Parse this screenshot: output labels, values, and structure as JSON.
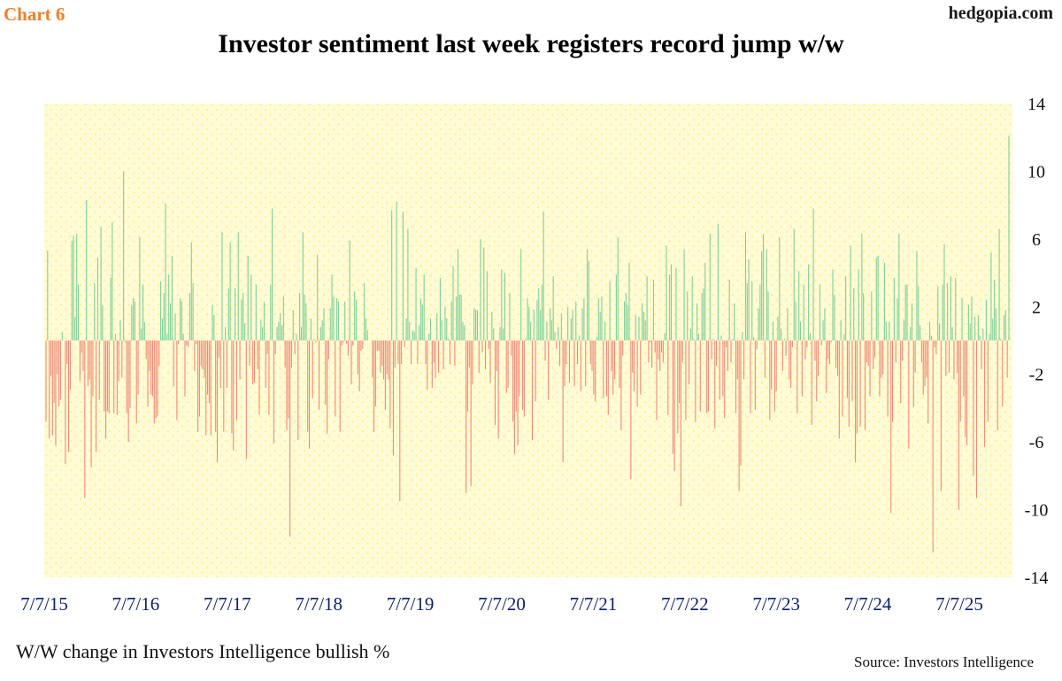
{
  "header": {
    "chart_number": "Chart 6",
    "site": "hedgopia.com",
    "title": "Investor sentiment last week registers record jump w/w"
  },
  "footer": {
    "caption": "W/W change in Investors Intelligence bullish %",
    "source": "Source: Investors Intelligence"
  },
  "colors": {
    "positive": "#7fcf9a",
    "negative": "#ef8a7a",
    "plot_background": "#fffbd6",
    "dots": "#fff07a",
    "axis_text": "#0b1f6b"
  },
  "chart_data": {
    "type": "bar",
    "title": "Investor sentiment last week registers record jump w/w",
    "xlabel": "",
    "ylabel": "",
    "ylim": [
      -14,
      14
    ],
    "y_ticks": [
      14,
      10,
      6,
      2,
      -2,
      -6,
      -10,
      -14
    ],
    "y_axis_side": "right",
    "x_tick_labels": [
      "7/7/15",
      "7/7/16",
      "7/7/17",
      "7/7/18",
      "7/7/19",
      "7/7/20",
      "7/7/21",
      "7/7/22",
      "7/7/23",
      "7/7/24",
      "7/7/25"
    ],
    "grid": false,
    "legend": "none",
    "series": [
      {
        "values": [
          -4.8,
          5.3,
          -5.8,
          -2.1,
          -5.6,
          -3.7,
          -6.2,
          -2.0,
          -3.9,
          -3.5,
          0.5,
          0.0,
          -7.3,
          -1.4,
          -6.6,
          -2.9,
          5.9,
          6.2,
          1.4,
          6.3,
          3.3,
          -2.4,
          -0.7,
          -1.8,
          -9.3,
          8.3,
          -2.7,
          -2.3,
          -7.5,
          -3.3,
          3.4,
          -6.6,
          4.9,
          -3.5,
          6.7,
          2.1,
          -4.2,
          -5.8,
          -4.2,
          -4.3,
          3.7,
          7.0,
          -4.3,
          0.4,
          -4.4,
          -2.4,
          1.2,
          -2.2,
          10.0,
          -0.1,
          -4.3,
          -6.0,
          -4.0,
          2.1,
          2.5,
          2.3,
          -4.9,
          -3.2,
          6.1,
          0.7,
          3.3,
          1.1,
          -1.1,
          -3.9,
          -1.8,
          -3.2,
          -3.3,
          -4.9,
          -4.6,
          -4.5,
          -1.5,
          3.5,
          1.3,
          2.8,
          8.1,
          0.4,
          3.9,
          2.2,
          5.0,
          -2.7,
          1.6,
          -4.7,
          -0.2,
          2.5,
          2.3,
          0.4,
          -3.3,
          -0.3,
          -0.4,
          2.8,
          5.8,
          3.4,
          -1.8,
          -0.2,
          -5.4,
          -4.5,
          -1.5,
          -1.7,
          -2.2,
          -5.6,
          -3.2,
          -3.7,
          -5.6,
          2.1,
          1.5,
          -5.4,
          -7.2,
          -1.0,
          -2.8,
          6.4,
          -5.4,
          0.8,
          -2.8,
          3.1,
          5.8,
          -5.5,
          -6.5,
          3.1,
          -4.7,
          6.4,
          -2.3,
          2.4,
          2.8,
          1.0,
          -7.0,
          5.0,
          -1.5,
          3.9,
          -2.6,
          -2.5,
          3.3,
          -1.7,
          -4.4,
          1.2,
          0.8,
          2.3,
          -2.8,
          -0.8,
          -4.4,
          3.3,
          7.8,
          -6.1,
          -0.8,
          0.8,
          1.1,
          1.6,
          0.9,
          2.6,
          -1.6,
          -5.3,
          -4.6,
          -11.6,
          -1.6,
          1.8,
          -0.8,
          0.4,
          -5.9,
          2.8,
          0.8,
          6.4,
          2.7,
          2.2,
          -5.4,
          -6.4,
          1.3,
          -3.4,
          0.1,
          -0.1,
          5.1,
          -4.1,
          0.8,
          1.2,
          1.9,
          -3.8,
          -5.5,
          -1.1,
          1.9,
          3.9,
          2.6,
          -4.5,
          2.5,
          2.3,
          -5.4,
          -0.3,
          -0.1,
          2.3,
          -0.2,
          -0.9,
          5.9,
          -2.6,
          -0.3,
          2.9,
          2.4,
          -2.0,
          -3.0,
          -0.6,
          -0.5,
          3.4,
          1.3,
          0.6,
          0.0,
          0.0,
          -2.2,
          -5.4,
          -3.9,
          -0.6,
          -0.6,
          -1.9,
          -1.5,
          -2.3,
          -4.1,
          -2.0,
          -2.3,
          -5.2,
          7.7,
          -6.8,
          -1.6,
          8.2,
          -1.4,
          -9.5,
          -1.4,
          7.6,
          -0.4,
          1.3,
          6.6,
          1.1,
          -1.4,
          0.6,
          0.5,
          4.3,
          -1.4,
          0.9,
          2.5,
          2.1,
          3.9,
          -1.4,
          -2.9,
          0.4,
          1.3,
          -2.8,
          -1.3,
          -2.2,
          1.6,
          -1.9,
          3.7,
          1.2,
          -1.7,
          2.0,
          1.3,
          0.1,
          -1.4,
          2.3,
          4.4,
          -1.5,
          2.6,
          5.4,
          2.7,
          2.7,
          1.1,
          0.9,
          -9.0,
          -4.2,
          -1.6,
          -8.6,
          -2.6,
          1.9,
          1.8,
          1.8,
          -1.9,
          6.0,
          -0.7,
          5.5,
          -1.7,
          4.1,
          -0.5,
          -2.5,
          1.7,
          0.7,
          -5.0,
          -1.8,
          -5.8,
          0.8,
          4.2,
          0.7,
          4.0,
          -3.1,
          -2.8,
          2.8,
          -0.9,
          -4.8,
          -6.7,
          -4.2,
          -6.2,
          -3.3,
          5.4,
          -4.1,
          -4.5,
          0.1,
          2.5,
          2.0,
          1.1,
          -5.9,
          1.8,
          -3.6,
          2.4,
          3.1,
          1.8,
          3.3,
          7.6,
          -1.2,
          1.1,
          -3.5,
          1.9,
          1.2,
          3.8,
          0.5,
          -0.5,
          0.8,
          -1.5,
          1.6,
          -7.2,
          -2.7,
          -1.4,
          2.0,
          -2.5,
          1.3,
          1.8,
          -2.7,
          2.3,
          -1.4,
          0.3,
          -3.0,
          1.9,
          2.5,
          -2.7,
          5.4,
          4.7,
          -1.4,
          -1.8,
          -3.2,
          -3.6,
          0.2,
          2.5,
          1.7,
          2.6,
          -3.4,
          1.1,
          -3.3,
          -4.4,
          3.5,
          -1.8,
          -3.2,
          -2.3,
          3.9,
          6.1,
          -2.8,
          -5.3,
          -0.9,
          2.3,
          2.8,
          2.1,
          4.6,
          -8.2,
          -1.9,
          -3.0,
          1.5,
          -3.9,
          1.4,
          -3.2,
          2.2,
          1.7,
          1.2,
          3.8,
          -1.3,
          -0.1,
          -1.6,
          3.6,
          -0.7,
          -4.7,
          -1.1,
          -1.8,
          -0.7,
          -1.3,
          0.4,
          5.6,
          -4.4,
          3.9,
          4.5,
          -6.7,
          -7.7,
          4.3,
          -5.5,
          -3.7,
          -9.8,
          -1.3,
          5.4,
          -4.7,
          2.9,
          -2.6,
          0.7,
          3.8,
          0.1,
          -4.8,
          2.2,
          0.4,
          -4.2,
          2.8,
          3.1,
          4.6,
          -4.3,
          -4.2,
          6.3,
          -1.1,
          0.1,
          -5.2,
          -1.5,
          6.9,
          -3.5,
          0.3,
          -3.3,
          -4.6,
          -0.4,
          -1.8,
          3.6,
          -1.3,
          0.1,
          2.2,
          -4.3,
          -2.3,
          -8.9,
          -7.4,
          0.5,
          -2.3,
          6.4,
          3.4,
          4.8,
          -4.3,
          3.5,
          0.2,
          -4.1,
          -0.5,
          1.9,
          3.3,
          5.3,
          6.3,
          -2.2,
          5.4,
          2.9,
          -4.7,
          -2.9,
          1.1,
          -4.2,
          -3.0,
          1.4,
          6.1,
          0.7,
          -1.8,
          0.1,
          -0.9,
          1.9,
          -2.3,
          -2.8,
          -0.4,
          6.6,
          2.3,
          -4.3,
          4.1,
          1.1,
          -3.3,
          3.3,
          -1.1,
          -0.4,
          4.5,
          0.4,
          -5.0,
          7.8,
          -1.2,
          -3.6,
          -2.1,
          3.3,
          -0.3,
          1.2,
          1.9,
          -3.1,
          -1.1,
          -1.4,
          -0.1,
          4.2,
          2.7,
          -1.6,
          -2.1,
          -5.8,
          1.2,
          -4.5,
          0.4,
          3.8,
          -3.4,
          -5.1,
          5.6,
          -3.6,
          3.1,
          -7.2,
          -5.5,
          4.2,
          -5.1,
          6.3,
          2.8,
          -5.3,
          -1.3,
          -1.5,
          -3.3,
          2.9,
          -1.7,
          -1.0,
          4.9,
          5.0,
          -3.3,
          -2.2,
          -2.0,
          4.6,
          1.1,
          -4.5,
          1.1,
          -10.2,
          -4.8,
          3.7,
          -1.3,
          2.5,
          6.3,
          -3.7,
          -1.2,
          1.2,
          3.3,
          3.3,
          -6.4,
          0.8,
          2.2,
          -3.9,
          -1.9,
          5.3,
          3.2,
          0.9,
          -1.3,
          -3.2,
          -2.7,
          -2.2,
          -4.9,
          1.1,
          0.3,
          -12.5,
          -0.4,
          -0.8,
          3.2,
          1.0,
          -8.9,
          3.3,
          5.7,
          -2.1,
          3.4,
          -1.9,
          3.8,
          0.8,
          -2.3,
          3.7,
          -1.9,
          -10.0,
          -4.8,
          2.5,
          -3.3,
          -5.7,
          -6.2,
          2.1,
          1.0,
          2.6,
          -8.0,
          1.4,
          -9.3,
          1.5,
          0.3,
          -1.7,
          0.7,
          -6.3,
          2.4,
          -4.8,
          0.4,
          5.2,
          1.3,
          3.6,
          1.9,
          -5.3,
          6.6,
          0.1,
          -3.9,
          1.5,
          1.8,
          -2.2,
          12.1
        ]
      }
    ]
  }
}
